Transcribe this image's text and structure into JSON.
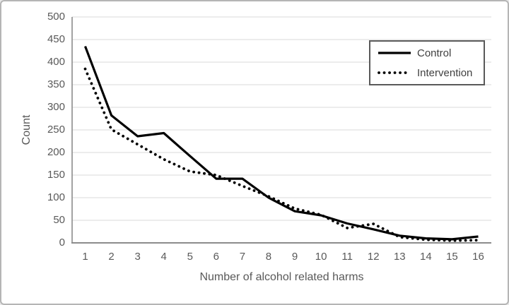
{
  "chart_data": {
    "type": "line",
    "title": "",
    "xlabel": "Number of alcohol related harms",
    "ylabel": "Count",
    "categories": [
      "1",
      "2",
      "3",
      "4",
      "5",
      "6",
      "7",
      "8",
      "9",
      "10",
      "11",
      "12",
      "13",
      "14",
      "15",
      "16"
    ],
    "series": [
      {
        "name": "Control",
        "style": "solid",
        "color": "#000000",
        "values": [
          435,
          282,
          236,
          243,
          192,
          142,
          142,
          100,
          70,
          61,
          43,
          30,
          16,
          10,
          8,
          14
        ]
      },
      {
        "name": "Intervention",
        "style": "dotted",
        "color": "#000000",
        "values": [
          385,
          251,
          218,
          185,
          158,
          150,
          126,
          103,
          76,
          62,
          33,
          42,
          13,
          7,
          5,
          6
        ]
      }
    ],
    "ylim": [
      0,
      500
    ],
    "ytick_step": 50,
    "y_ticks": [
      0,
      50,
      100,
      150,
      200,
      250,
      300,
      350,
      400,
      450,
      500
    ],
    "grid": "horizontal",
    "gridline_color": "#d9d9d9",
    "axis_color": "#8c8c8c",
    "tick_label_color": "#595959",
    "axis_title_color": "#595959",
    "legend": {
      "position": "top-right",
      "border_color": "#595959",
      "text_color": "#404040"
    }
  },
  "frame": {
    "background": "#ffffff",
    "border_color": "#b5b5b5"
  }
}
